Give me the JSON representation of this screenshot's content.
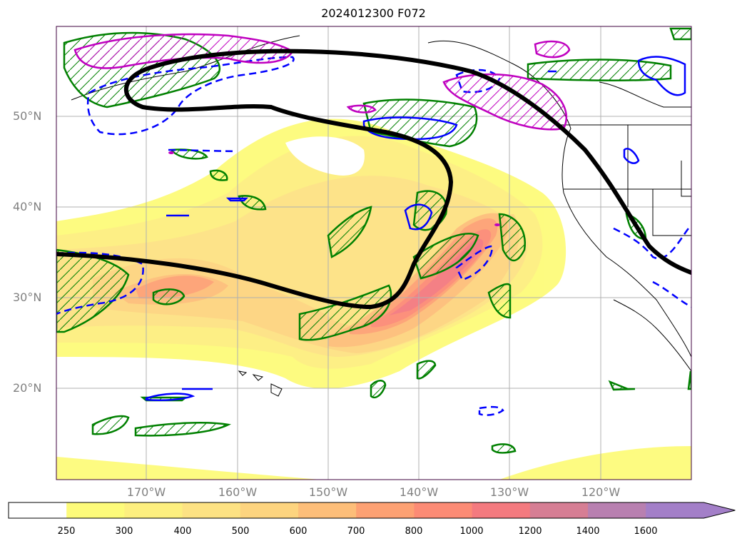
{
  "title": "2024012300 F072",
  "latitude_labels": [
    "50°N",
    "40°N",
    "30°N",
    "20°N"
  ],
  "longitude_labels": [
    "170°W",
    "160°W",
    "150°W",
    "140°W",
    "130°W",
    "120°W"
  ],
  "colorbar": {
    "ticks": [
      "250",
      "300",
      "400",
      "500",
      "600",
      "700",
      "800",
      "1000",
      "1200",
      "1400",
      "1600"
    ],
    "colors": [
      "#ffffff",
      "#fdfb7a",
      "#fdef7f",
      "#fde283",
      "#fdd47f",
      "#fdbe79",
      "#fda173",
      "#fc8b75",
      "#f47a7f",
      "#d67e94",
      "#b880b0",
      "#a37fc8"
    ],
    "extend": "max"
  },
  "legend_colors": {
    "coastline": "#000000",
    "jet_axis": "#000000",
    "green_contour": "#008000",
    "blue_contour": "#0000ff",
    "magenta_contour": "#bf00bf",
    "grid": "#b0b0b0",
    "tick_label": "#808080"
  }
}
